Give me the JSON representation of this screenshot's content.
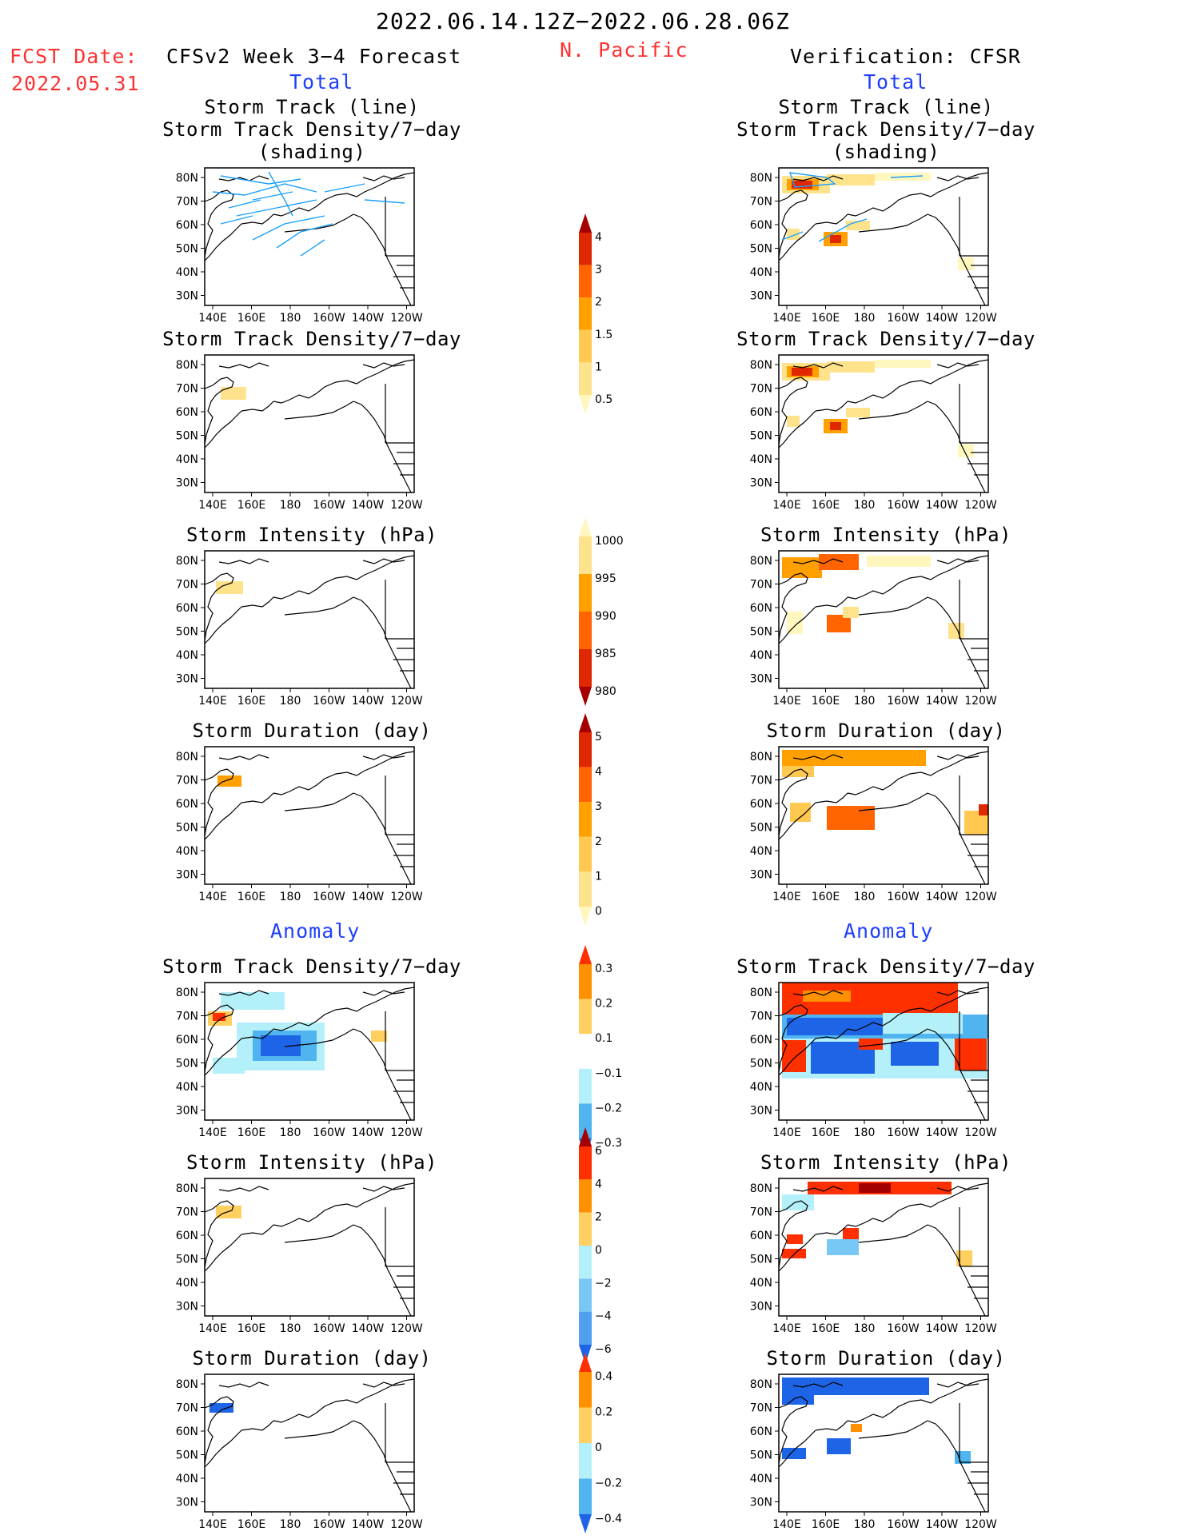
{
  "header": {
    "period": "2022.06.14.12Z−2022.06.28.06Z",
    "region": "N. Pacific",
    "fcst_label": "FCST Date:",
    "fcst_date": "2022.05.31",
    "left_title": "CFSv2 Week 3−4 Forecast",
    "right_title": "Verification: CFSR",
    "total_label": "Total",
    "anomaly_label": "Anomaly"
  },
  "axes": {
    "lat_labels": [
      "80N",
      "70N",
      "60N",
      "50N",
      "40N",
      "30N"
    ],
    "lon_labels": [
      "140E",
      "160E",
      "180",
      "160W",
      "140W",
      "120W"
    ]
  },
  "panels": [
    {
      "id": "track",
      "title1": "Storm Track (line)",
      "title2": "Storm Track Density/7−day (shading)"
    },
    {
      "id": "density",
      "title1": "Storm Track Density/7−day"
    },
    {
      "id": "intensity",
      "title1": "Storm Intensity (hPa)"
    },
    {
      "id": "duration",
      "title1": "Storm Duration (day)"
    },
    {
      "id": "anom_density",
      "title1": "Storm Track Density/7−day"
    },
    {
      "id": "anom_intensity",
      "title1": "Storm Intensity (hPa)"
    },
    {
      "id": "anom_duration",
      "title1": "Storm Duration (day)"
    }
  ],
  "colorbars": [
    {
      "id": "density",
      "labels": [
        "4",
        "3",
        "2",
        "1.5",
        "1",
        "0.5"
      ],
      "colors": [
        "#a50000",
        "#e02800",
        "#ff6400",
        "#ffa000",
        "#ffc850",
        "#ffe38c",
        "#fff7be"
      ]
    },
    {
      "id": "intensity",
      "labels": [
        "1000",
        "995",
        "990",
        "985",
        "980"
      ],
      "colors": [
        "#fff7be",
        "#ffe38c",
        "#ffa000",
        "#ff6400",
        "#e02800",
        "#a50000"
      ]
    },
    {
      "id": "duration",
      "labels": [
        "5",
        "4",
        "3",
        "2",
        "1",
        "0"
      ],
      "colors": [
        "#a50000",
        "#e02800",
        "#ff6400",
        "#ffa000",
        "#ffc850",
        "#ffe38c",
        "#fff7be"
      ]
    },
    {
      "id": "anom_density",
      "labels": [
        "0.3",
        "0.2",
        "0.1",
        "−0.1",
        "−0.2",
        "−0.3"
      ],
      "colors": [
        "#ff3000",
        "#ff9000",
        "#ffd060",
        "#ffffff",
        "#b4f0fa",
        "#50b4f0",
        "#1e64e6"
      ]
    },
    {
      "id": "anom_intensity",
      "labels": [
        "6",
        "4",
        "2",
        "0",
        "−2",
        "−4",
        "−6"
      ],
      "colors": [
        "#a50000",
        "#ff3000",
        "#ff9000",
        "#ffd060",
        "#b4f0fa",
        "#78c8f5",
        "#50a0f0",
        "#1e64e6"
      ]
    },
    {
      "id": "anom_duration",
      "labels": [
        "0.4",
        "0.2",
        "0",
        "−0.2",
        "−0.4"
      ],
      "colors": [
        "#ff3000",
        "#ff9000",
        "#ffd060",
        "#b4f0fa",
        "#50b4f0",
        "#1e64e6"
      ]
    }
  ]
}
